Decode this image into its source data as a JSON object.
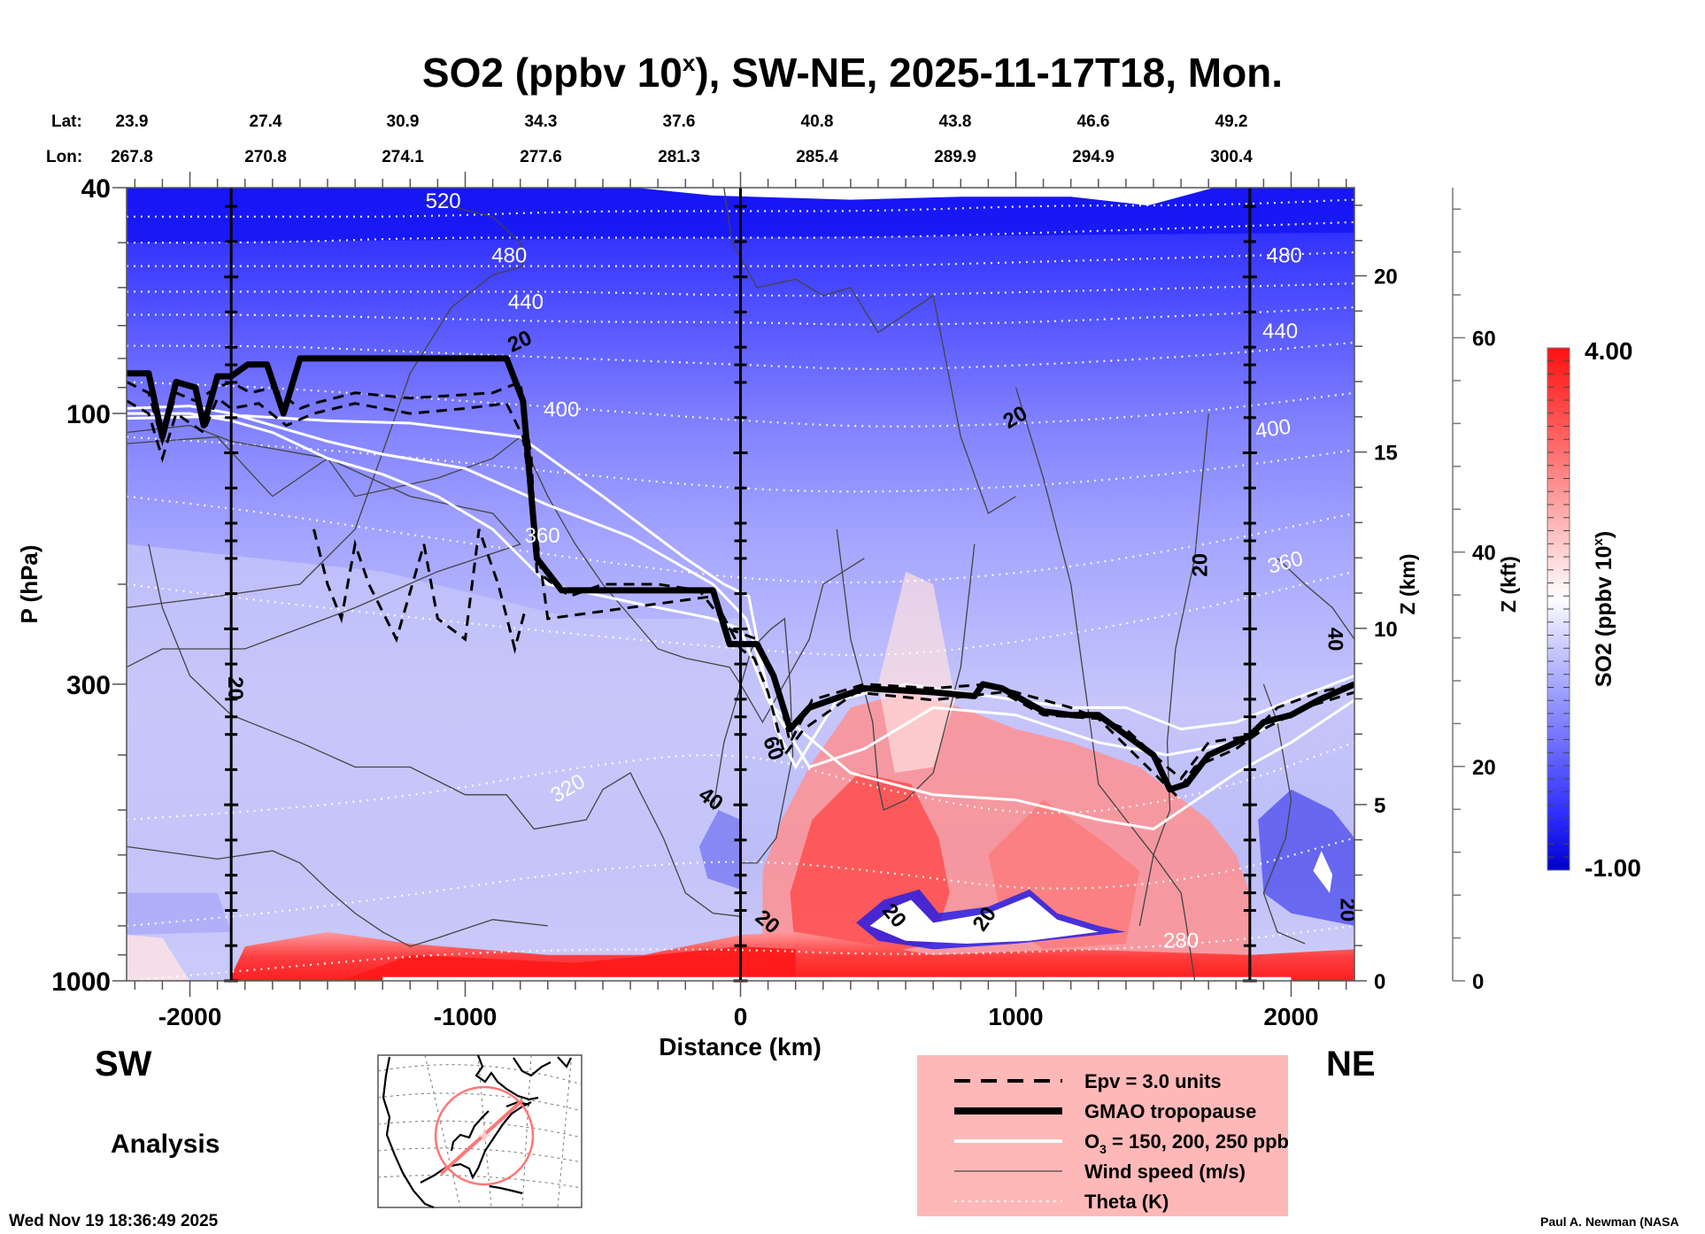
{
  "chart_data": {
    "type": "heatmap",
    "title": "SO2 (ppbv 10",
    "title_superscript": "x",
    "title_suffix": "), SW-NE, 2025-11-17T18, Mon.",
    "xlabel": "Distance (km)",
    "ylabel": "P (hPa)",
    "ylabel_right_km": "Z (km)",
    "ylabel_right_kft": "Z (kft)",
    "xlim": [
      -2230,
      2230
    ],
    "ylim_hpa": [
      1000,
      40
    ],
    "y_scale": "log",
    "x_ticks": [
      -2000,
      -1000,
      0,
      1000,
      2000
    ],
    "x_tick_labels": [
      "-2000",
      "-1000",
      "0",
      "1000",
      "2000"
    ],
    "y_ticks": [
      40,
      100,
      300,
      1000
    ],
    "y_tick_labels": [
      "40",
      "100",
      "300",
      "1000"
    ],
    "z_km_ticks": [
      0,
      5,
      10,
      15,
      20
    ],
    "z_km_tick_labels": [
      "0",
      "5",
      "10",
      "15",
      "20"
    ],
    "z_km_max": 22.5,
    "z_kft_ticks": [
      0,
      20,
      40,
      60
    ],
    "z_kft_tick_labels": [
      "0",
      "20",
      "40",
      "60"
    ],
    "z_kft_max": 74,
    "vertical_markers_km": [
      -1850,
      0,
      1850
    ],
    "lat_label": "Lat:",
    "lon_label": "Lon:",
    "lat": [
      "23.9",
      "27.4",
      "30.9",
      "34.3",
      "37.6",
      "40.8",
      "43.8",
      "46.6",
      "49.2"
    ],
    "lon": [
      "267.8",
      "270.8",
      "274.1",
      "277.6",
      "281.3",
      "285.4",
      "289.9",
      "294.9",
      "300.4"
    ],
    "colorbar": {
      "label": "SO2 (ppbv 10",
      "label_superscript": "x",
      "label_suffix": ")",
      "min": -1.0,
      "max": 4.0,
      "min_label": "-1.00",
      "max_label": "4.00",
      "low_color": "#0000cc",
      "mid_color": "#ffffff",
      "high_color": "#ff0000",
      "white_at": 1.5
    },
    "theta_levels_K": [
      {
        "value": 520,
        "label": "520",
        "p": [
          45,
          45,
          45,
          44,
          44,
          44,
          43,
          43,
          42
        ]
      },
      {
        "value": 500,
        "label": "",
        "p": [
          50,
          50,
          49,
          49,
          49,
          49,
          48,
          47,
          46
        ]
      },
      {
        "value": 480,
        "label": "480",
        "p": [
          55,
          55,
          55,
          55,
          55,
          55,
          54,
          53,
          52
        ]
      },
      {
        "value": 460,
        "label": "",
        "p": [
          61,
          61,
          61,
          61,
          62,
          62,
          61,
          60,
          59
        ]
      },
      {
        "value": 440,
        "label": "440",
        "p": [
          67,
          67,
          68,
          69,
          69,
          70,
          69,
          67,
          65
        ]
      },
      {
        "value": 420,
        "label": "",
        "p": [
          76,
          76,
          78,
          80,
          82,
          84,
          82,
          79,
          75
        ]
      },
      {
        "value": 400,
        "label": "400",
        "p": [
          88,
          90,
          94,
          98,
          103,
          106,
          104,
          99,
          92
        ]
      },
      {
        "value": 380,
        "label": "",
        "p": [
          110,
          114,
          120,
          128,
          136,
          138,
          134,
          126,
          116
        ]
      },
      {
        "value": 360,
        "label": "360",
        "p": [
          140,
          150,
          165,
          180,
          196,
          200,
          190,
          170,
          150
        ]
      },
      {
        "value": 340,
        "label": "",
        "p": [
          200,
          215,
          230,
          245,
          260,
          270,
          250,
          220,
          190
        ]
      },
      {
        "value": 320,
        "label": "320",
        "p": [
          520,
          500,
          470,
          420,
          390,
          460,
          520,
          470,
          380
        ]
      },
      {
        "value": 300,
        "label": "",
        "p": [
          800,
          760,
          700,
          640,
          610,
          640,
          700,
          660,
          560
        ]
      },
      {
        "value": 280,
        "label": "280",
        "p": [
          1000,
          950,
          900,
          880,
          880,
          900,
          890,
          860,
          800
        ]
      }
    ],
    "theta_x_km": [
      -2230,
      -1700,
      -1150,
      -600,
      0,
      500,
      1100,
      1700,
      2230
    ],
    "contour_labels": [
      {
        "text": "520",
        "x": -1080,
        "p": 42.5,
        "color": "#ffffff",
        "rot": 0
      },
      {
        "text": "480",
        "x": -840,
        "p": 53,
        "color": "#ffffff",
        "rot": 0
      },
      {
        "text": "440",
        "x": -780,
        "p": 64,
        "color": "#ffffff",
        "rot": 0
      },
      {
        "text": "400",
        "x": -650,
        "p": 99,
        "color": "#ffffff",
        "rot": 0
      },
      {
        "text": "360",
        "x": -720,
        "p": 165,
        "color": "#ffffff",
        "rot": 0
      },
      {
        "text": "320",
        "x": -625,
        "p": 460,
        "color": "#ffffff",
        "rot": -30
      },
      {
        "text": "480",
        "x": 1975,
        "p": 53,
        "color": "#ffffff",
        "rot": 0
      },
      {
        "text": "440",
        "x": 1960,
        "p": 72,
        "color": "#ffffff",
        "rot": 0
      },
      {
        "text": "400",
        "x": 1935,
        "p": 107,
        "color": "#ffffff",
        "rot": -8
      },
      {
        "text": "360",
        "x": 1980,
        "p": 184,
        "color": "#ffffff",
        "rot": -15
      },
      {
        "text": "280",
        "x": 1600,
        "p": 855,
        "color": "#ffffff",
        "rot": 0
      },
      {
        "text": "20",
        "x": -800,
        "p": 75,
        "color": "#000000",
        "rot": -25
      },
      {
        "text": "20",
        "x": 1000,
        "p": 102,
        "color": "#000000",
        "rot": -30
      },
      {
        "text": "20",
        "x": 1675,
        "p": 185,
        "color": "#000000",
        "rot": -90
      },
      {
        "text": "20",
        "x": -1840,
        "p": 305,
        "color": "#000000",
        "rot": 90
      },
      {
        "text": "40",
        "x": -110,
        "p": 480,
        "color": "#000000",
        "rot": 35
      },
      {
        "text": "60",
        "x": 115,
        "p": 390,
        "color": "#000000",
        "rot": 70
      },
      {
        "text": "40",
        "x": 2155,
        "p": 250,
        "color": "#000000",
        "rot": 90
      },
      {
        "text": "20",
        "x": 95,
        "p": 790,
        "color": "#000000",
        "rot": 40
      },
      {
        "text": "20",
        "x": 555,
        "p": 770,
        "color": "#000000",
        "rot": 50
      },
      {
        "text": "20",
        "x": 890,
        "p": 780,
        "color": "#000000",
        "rot": -55
      },
      {
        "text": "20",
        "x": 2200,
        "p": 750,
        "color": "#000000",
        "rot": 90
      }
    ],
    "tropopause_hpa": {
      "x_km": [
        -2230,
        -2150,
        -2100,
        -2050,
        -1980,
        -1950,
        -1900,
        -1850,
        -1790,
        -1720,
        -1660,
        -1600,
        -1550,
        -1200,
        -850,
        -790,
        -740,
        -650,
        -400,
        -100,
        -40,
        60,
        120,
        180,
        250,
        450,
        700,
        850,
        880,
        950,
        1100,
        1200,
        1300,
        1500,
        1560,
        1620,
        1700,
        1800,
        1850,
        1900,
        2000,
        2100,
        2230
      ],
      "p": [
        85,
        85,
        110,
        88,
        90,
        105,
        86,
        86,
        82,
        82,
        100,
        80,
        80,
        80,
        80,
        95,
        180,
        205,
        205,
        205,
        255,
        255,
        290,
        360,
        330,
        305,
        310,
        315,
        300,
        305,
        335,
        340,
        340,
        400,
        460,
        450,
        400,
        380,
        370,
        350,
        340,
        320,
        300
      ]
    },
    "tropopause_label": "GMAO tropopause",
    "legend": {
      "position": "bottom-center",
      "background": "#ffb8b8",
      "items": [
        {
          "label": "Epv = 3.0 units",
          "style": "dashed-thick"
        },
        {
          "label": "GMAO tropopause",
          "style": "solid-thick"
        },
        {
          "label": "O",
          "sub": "3",
          "label_suffix": " = 150, 200, 250 ppb",
          "style": "white-solid"
        },
        {
          "label": "Wind speed (m/s)",
          "style": "thin-gray"
        },
        {
          "label": "Theta (K)",
          "style": "white-dotted"
        }
      ]
    },
    "left_corner": "SW",
    "right_corner": "NE",
    "product": "Analysis"
  },
  "footer": {
    "timestamp": "Wed Nov 19 18:36:49 2025",
    "credit": "Paul A. Newman (NASA"
  },
  "map_inset": {
    "description": "North America polar stereographic map with SW-NE section line and 2000 km circle",
    "line_color": "#ff7f7f"
  }
}
